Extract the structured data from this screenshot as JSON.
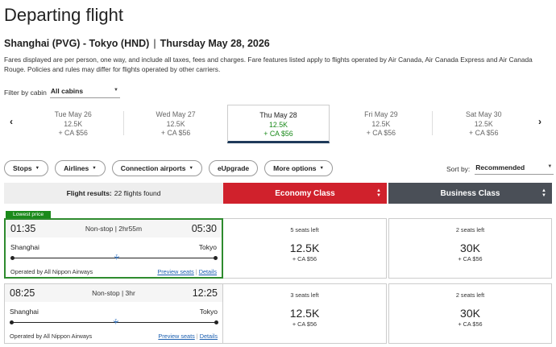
{
  "page": {
    "title": "Departing flight",
    "route": "Shanghai (PVG) - Tokyo (HND)",
    "route_separator": "|",
    "date": "Thursday May 28, 2026",
    "disclaimer": "Fares displayed are per person, one way, and include all taxes, fees and charges. Fare features listed apply to flights operated by Air Canada, Air Canada Express and Air Canada Rouge. Policies and rules may differ for flights operated by other carriers."
  },
  "cabin_filter": {
    "label": "Filter by cabin",
    "value": "All cabins"
  },
  "date_strip": [
    {
      "day": "Tue May 26",
      "price": "12.5K",
      "fee": "+ CA $56",
      "selected": false
    },
    {
      "day": "Wed May 27",
      "price": "12.5K",
      "fee": "+ CA $56",
      "selected": false
    },
    {
      "day": "Thu May 28",
      "price": "12.5K",
      "fee": "+ CA $56",
      "selected": true
    },
    {
      "day": "Fri May 29",
      "price": "12.5K",
      "fee": "+ CA $56",
      "selected": false
    },
    {
      "day": "Sat May 30",
      "price": "12.5K",
      "fee": "+ CA $56",
      "selected": false
    }
  ],
  "filters": [
    {
      "label": "Stops",
      "has_caret": true
    },
    {
      "label": "Airlines",
      "has_caret": true
    },
    {
      "label": "Connection airports",
      "has_caret": true
    },
    {
      "label": "eUpgrade",
      "has_caret": false
    },
    {
      "label": "More options",
      "has_caret": true
    }
  ],
  "sort": {
    "label": "Sort by:",
    "value": "Recommended"
  },
  "results_header": {
    "results_label": "Flight results:",
    "results_count": "22 flights found",
    "economy": "Economy Class",
    "business": "Business Class"
  },
  "lowest_price_badge": "Lowest price",
  "flights": [
    {
      "depart": "01:35",
      "summary": "Non-stop | 2hr55m",
      "arrive": "05:30",
      "origin": "Shanghai",
      "destination": "Tokyo",
      "operator": "Operated by All Nippon Airways",
      "preview_link": "Preview seats",
      "details_link": "Details",
      "economy": {
        "seats": "5 seats left",
        "price": "12.5K",
        "fee": "+ CA $56"
      },
      "business": {
        "seats": "2 seats left",
        "price": "30K",
        "fee": "+ CA $56"
      }
    },
    {
      "depart": "08:25",
      "summary": "Non-stop | 3hr",
      "arrive": "12:25",
      "origin": "Shanghai",
      "destination": "Tokyo",
      "operator": "Operated by All Nippon Airways",
      "preview_link": "Preview seats",
      "details_link": "Details",
      "economy": {
        "seats": "3 seats left",
        "price": "12.5K",
        "fee": "+ CA $56"
      },
      "business": {
        "seats": "2 seats left",
        "price": "30K",
        "fee": "+ CA $56"
      }
    }
  ],
  "icons": {
    "prev": "chevron-left-icon",
    "next": "chevron-right-icon",
    "caret": "caret-down-icon",
    "plane": "plane-icon"
  },
  "colors": {
    "economy": "#d0212c",
    "business": "#4a4f57",
    "selected_price": "#1a8a1a",
    "link": "#1b5fb0"
  }
}
